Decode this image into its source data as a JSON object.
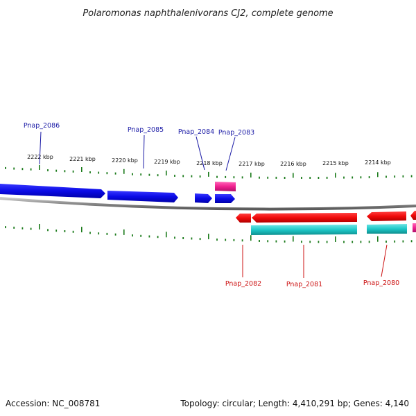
{
  "title": "Polaromonas naphthalenivorans CJ2, complete genome",
  "footer": {
    "accession": "Accession: NC_008781",
    "summary": "Topology: circular; Length: 4,410,291 bp; Genes: 4,140"
  },
  "colors": {
    "top_strand_gene": "#0a0ae6",
    "bottom_strand_gene": "#f00a0a",
    "cds_bottom": "#1ec8c8",
    "rna_feature": "#f0208f",
    "backbone": "#8a8a8a",
    "tick": "#1a7a1a",
    "label_top": "#1a1aa6",
    "label_bottom": "#cc1111"
  },
  "ticks_top": [
    "2222 kbp",
    "2221 kbp",
    "2220 kbp",
    "2219 kbp",
    "2218 kbp",
    "2217 kbp",
    "2216 kbp",
    "2215 kbp",
    "2214 kbp"
  ],
  "genes_top": [
    "Pnap_2086",
    "Pnap_2085",
    "Pnap_2084",
    "Pnap_2083"
  ],
  "genes_bottom": [
    "Pnap_2082",
    "Pnap_2081",
    "Pnap_2080"
  ]
}
